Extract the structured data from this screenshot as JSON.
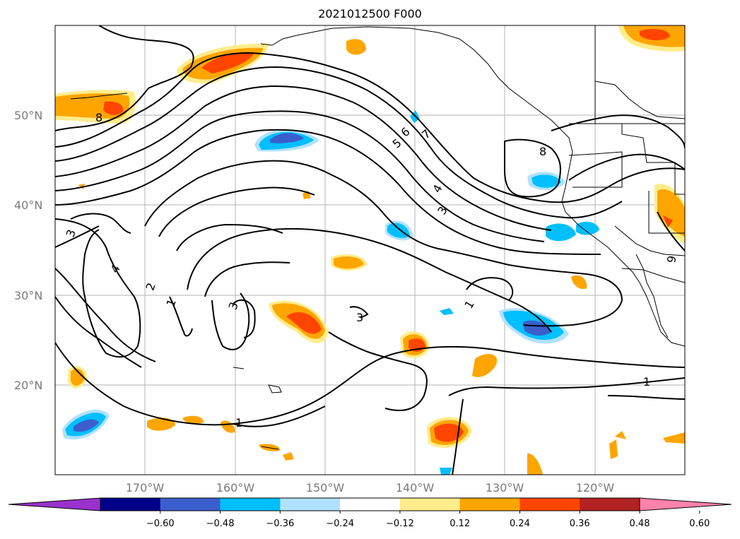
{
  "title": "2021012500 F000",
  "lat_labels": [
    "50°N",
    "40°N",
    "30°N",
    "20°N"
  ],
  "lon_labels": [
    "170°W",
    "160°W",
    "150°W",
    "140°W",
    "130°W",
    "120°W"
  ],
  "colorbar": {
    "colors": [
      "#9932cc",
      "#00008b",
      "#3a5fcd",
      "#00bfff",
      "#b0e2ff",
      "#ffffff",
      "#ffec8b",
      "#ffa500",
      "#ff4500",
      "#b22222",
      "#ff82ab"
    ],
    "tick_labels": [
      "−0.60",
      "−0.48",
      "−0.36",
      "−0.24",
      "−0.12",
      "0.12",
      "0.24",
      "0.36",
      "0.48",
      "0.60"
    ]
  },
  "contour_labels": [
    "8",
    "3",
    "4",
    "2",
    "1",
    "3",
    "3",
    "1",
    "6",
    "7",
    "5",
    "8",
    "4",
    "3",
    "1",
    "1",
    "9"
  ]
}
